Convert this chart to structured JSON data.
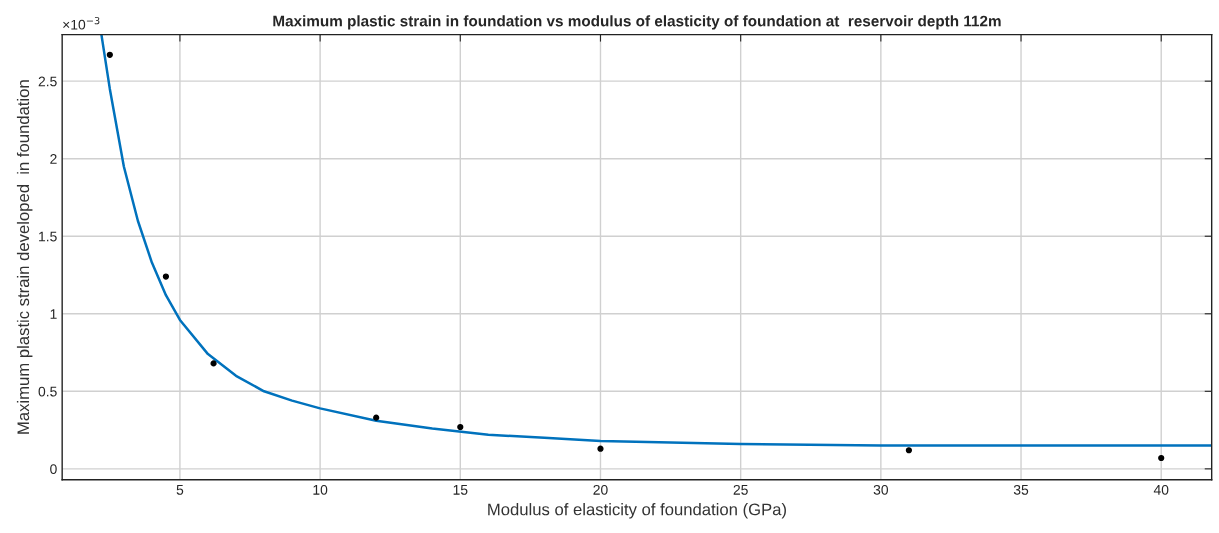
{
  "chart_data": {
    "type": "scatter",
    "title": "Maximum plastic strain in foundation vs modulus of elasticity of foundation at  reservoir depth 112m",
    "xlabel": "Modulus of elasticity of foundation (GPa)",
    "ylabel": "Maximum plastic strain developed  in foundation",
    "annotations": [
      "×10$^{−3}$"
    ],
    "series": [
      {
        "color": "#000000",
        "marker": "circle",
        "x": [
          2.5,
          4.5,
          6.2,
          12,
          15,
          20,
          31,
          40
        ],
        "values": [
          2.67,
          1.24,
          0.68,
          0.33,
          0.27,
          0.13,
          0.12,
          0.07
        ]
      },
      {
        "type": "line",
        "color": "#0072bd",
        "marker": "none",
        "x": [
          2.2,
          2.5,
          3,
          3.5,
          4,
          4.5,
          5,
          6,
          7,
          8,
          9,
          10,
          12,
          14,
          16,
          18,
          20,
          25,
          30,
          35,
          41.8
        ],
        "values": [
          2.8,
          2.45,
          1.95,
          1.6,
          1.33,
          1.12,
          0.96,
          0.74,
          0.6,
          0.5,
          0.44,
          0.39,
          0.31,
          0.26,
          0.22,
          0.2,
          0.18,
          0.16,
          0.15,
          0.15,
          0.15
        ]
      }
    ],
    "xlim": [
      0.8,
      41.8
    ],
    "xticks": [
      5,
      10,
      15,
      20,
      25,
      30,
      35,
      40
    ],
    "ylim": [
      -0.07,
      2.8
    ],
    "yticks": [
      0,
      0.5,
      1,
      1.5,
      2,
      2.5
    ],
    "grid": true
  }
}
